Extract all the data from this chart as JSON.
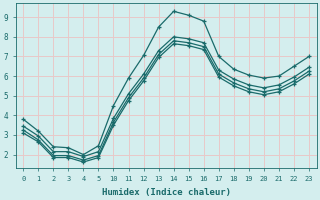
{
  "xlabel": "Humidex (Indice chaleur)",
  "bg_color": "#d4eeee",
  "grid_color": "#e8c8c8",
  "line_color": "#1a6b6b",
  "ylim": [
    1.3,
    9.7
  ],
  "yticks": [
    2,
    3,
    4,
    5,
    6,
    7,
    8,
    9
  ],
  "xtick_labels": [
    "0",
    "1",
    "2",
    "3",
    "4",
    "5",
    "10",
    "11",
    "12",
    "13",
    "14",
    "15",
    "16",
    "17",
    "18",
    "19",
    "20",
    "21",
    "22",
    "23"
  ],
  "line1_y": [
    3.8,
    3.2,
    2.4,
    2.35,
    2.0,
    2.45,
    4.5,
    5.9,
    7.05,
    8.5,
    9.3,
    9.1,
    8.8,
    7.0,
    6.35,
    6.05,
    5.9,
    6.0,
    6.5,
    7.0
  ],
  "line2_y": [
    3.45,
    2.95,
    2.15,
    2.15,
    1.9,
    2.15,
    3.85,
    5.1,
    6.1,
    7.3,
    8.0,
    7.9,
    7.7,
    6.3,
    5.85,
    5.55,
    5.4,
    5.55,
    5.95,
    6.45
  ],
  "line3_y": [
    3.25,
    2.75,
    1.95,
    1.95,
    1.72,
    1.95,
    3.65,
    4.9,
    5.9,
    7.1,
    7.8,
    7.7,
    7.5,
    6.1,
    5.65,
    5.35,
    5.2,
    5.35,
    5.75,
    6.25
  ],
  "line4_y": [
    3.1,
    2.65,
    1.85,
    1.85,
    1.62,
    1.85,
    3.5,
    4.75,
    5.75,
    6.95,
    7.65,
    7.55,
    7.35,
    5.95,
    5.5,
    5.2,
    5.05,
    5.2,
    5.6,
    6.1
  ]
}
